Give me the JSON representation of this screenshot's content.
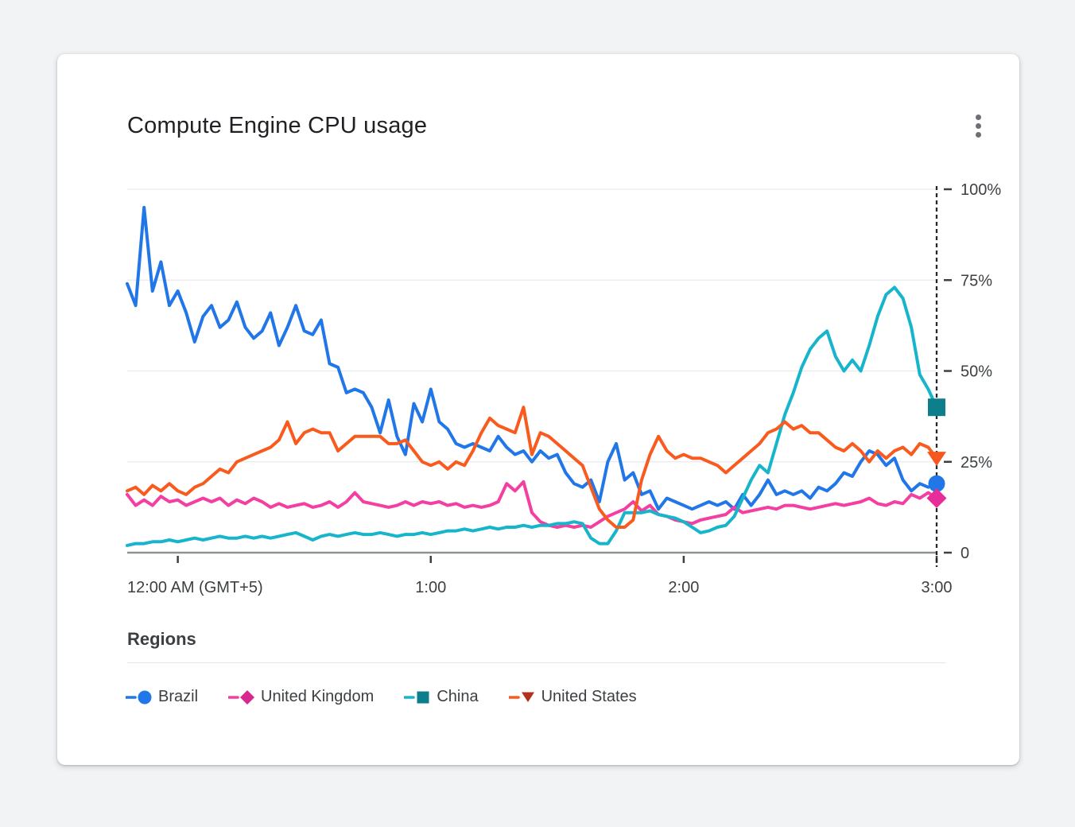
{
  "card": {
    "title": "Compute Engine CPU usage",
    "menu_icon": "kebab-menu",
    "regions_label": "Regions"
  },
  "colors": {
    "page_background": "#F1F3F5",
    "card_background": "#FFFFFF",
    "gridline": "#E9EAEE",
    "axis_line": "#8C9196",
    "tick_text": "#3C4043",
    "cursor_line": "#26282B"
  },
  "chart_data": {
    "type": "line",
    "title": "Compute Engine CPU usage",
    "x_unit": "minutes after 12:00 AM (GMT+5)",
    "x_start": -12,
    "x_step": 2,
    "ylim": [
      0,
      100
    ],
    "grid": true,
    "legend_position": "bottom",
    "cursor_line_x": 180,
    "x_ticks": [
      {
        "value": 0,
        "label": "12:00 AM (GMT+5)"
      },
      {
        "value": 60,
        "label": "1:00"
      },
      {
        "value": 120,
        "label": "2:00"
      },
      {
        "value": 180,
        "label": "3:00"
      }
    ],
    "y_ticks": [
      {
        "value": 0,
        "label": "0"
      },
      {
        "value": 25,
        "label": "25%"
      },
      {
        "value": 50,
        "label": "50%"
      },
      {
        "value": 75,
        "label": "75%"
      },
      {
        "value": 100,
        "label": "100%"
      }
    ],
    "series": [
      {
        "name": "Brazil",
        "color": "#2176E8",
        "marker": "circle",
        "marker_color": "#2176E8",
        "legend_marker_color": "#2176E8",
        "end_value": 19,
        "values": [
          74,
          68,
          95,
          72,
          80,
          68,
          72,
          66,
          58,
          65,
          68,
          62,
          64,
          69,
          62,
          59,
          61,
          66,
          57,
          62,
          68,
          61,
          60,
          64,
          52,
          51,
          44,
          45,
          44,
          40,
          33,
          42,
          32,
          27,
          41,
          36,
          45,
          36,
          34,
          30,
          29,
          30,
          29,
          28,
          32,
          29,
          27,
          28,
          25,
          28,
          26,
          27,
          22,
          19,
          18,
          20,
          14,
          25,
          30,
          20,
          22,
          16,
          17,
          12,
          15,
          14,
          13,
          12,
          13,
          14,
          13,
          14,
          12,
          16,
          13,
          16,
          20,
          16,
          17,
          16,
          17,
          15,
          18,
          17,
          19,
          22,
          21,
          25,
          28,
          27,
          24,
          26,
          20,
          17,
          19,
          18,
          19
        ]
      },
      {
        "name": "United Kingdom",
        "color": "#F33FA2",
        "marker": "diamond",
        "marker_color": "#E72D9A",
        "legend_marker_color": "#D7288F",
        "end_value": 15,
        "values": [
          16,
          13,
          14.5,
          13,
          15.5,
          14,
          14.5,
          13,
          14,
          15,
          14,
          15,
          13,
          14.5,
          13.5,
          15,
          14,
          12.5,
          13.5,
          12.5,
          13,
          13.5,
          12.5,
          13,
          14,
          12.5,
          14,
          16.5,
          14,
          13.5,
          13,
          12.5,
          13,
          14,
          13,
          14,
          13.5,
          14,
          13,
          13.5,
          12.5,
          13,
          12.5,
          13,
          14,
          19,
          17,
          19.5,
          11,
          8.5,
          7.5,
          7,
          7.5,
          7,
          7.5,
          7,
          8.5,
          10,
          11,
          12,
          14,
          11.5,
          13,
          10.5,
          10,
          9,
          8.5,
          8,
          9,
          9.5,
          10,
          10.5,
          12.5,
          11,
          11.5,
          12,
          12.5,
          12,
          13,
          13,
          12.5,
          12,
          12.5,
          13,
          13.5,
          13,
          13.5,
          14,
          15,
          13.5,
          13,
          14,
          13.5,
          16,
          15,
          16.5,
          15
        ]
      },
      {
        "name": "China",
        "color": "#17B5CB",
        "marker": "square",
        "marker_color": "#0D7E8C",
        "legend_marker_color": "#0D7E8C",
        "end_value": 40,
        "values": [
          2,
          2.5,
          2.5,
          3,
          3,
          3.5,
          3,
          3.5,
          4,
          3.5,
          4,
          4.5,
          4,
          4,
          4.5,
          4,
          4.5,
          4,
          4.5,
          5,
          5.5,
          4.5,
          3.5,
          4.5,
          5,
          4.5,
          5,
          5.5,
          5,
          5,
          5.5,
          5,
          4.5,
          5,
          5,
          5.5,
          5,
          5.5,
          6,
          6,
          6.5,
          6,
          6.5,
          7,
          6.5,
          7,
          7,
          7.5,
          7,
          7.5,
          7.5,
          8,
          8,
          8.5,
          8,
          4,
          2.5,
          2.5,
          6,
          11,
          11,
          11,
          11.5,
          10.5,
          10,
          9.5,
          8.5,
          7,
          5.5,
          6,
          7,
          7.5,
          10,
          15,
          20,
          24,
          22,
          30,
          38,
          44,
          51,
          56,
          59,
          61,
          54,
          50,
          53,
          50,
          57,
          65,
          71,
          73,
          70,
          62,
          49,
          45,
          40
        ]
      },
      {
        "name": "United States",
        "color": "#F95A1D",
        "marker": "triangle-down",
        "marker_color": "#F4581F",
        "legend_marker_color": "#B0341D",
        "end_value": 26,
        "values": [
          17,
          18,
          16,
          18.5,
          17,
          19,
          17,
          16,
          18,
          19,
          21,
          23,
          22,
          25,
          26,
          27,
          28,
          29,
          31,
          36,
          30,
          33,
          34,
          33,
          33,
          28,
          30,
          32,
          32,
          32,
          32,
          30,
          30,
          31,
          28,
          25,
          24,
          25,
          23,
          25,
          24,
          28,
          33,
          37,
          35,
          34,
          33,
          40,
          27,
          33,
          32,
          30,
          28,
          26,
          24,
          18,
          12,
          9,
          7,
          7,
          9,
          20,
          27,
          32,
          28,
          26,
          27,
          26,
          26,
          25,
          24,
          22,
          24,
          26,
          28,
          30,
          33,
          34,
          36,
          34,
          35,
          33,
          33,
          31,
          29,
          28,
          30,
          28,
          25,
          28,
          26,
          28,
          29,
          27,
          30,
          29,
          26
        ]
      }
    ]
  }
}
